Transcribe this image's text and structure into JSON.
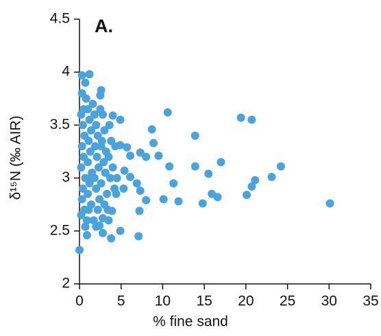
{
  "chart_data": {
    "type": "scatter",
    "title": "A.",
    "x_label": "% fine sand",
    "y_label": "δ¹⁵N (‰ AIR)",
    "xlim": [
      0,
      35
    ],
    "xticks": [
      0,
      5,
      10,
      15,
      20,
      25,
      30,
      35
    ],
    "ylim": [
      2,
      4.5
    ],
    "yticks": [
      2,
      2.5,
      3,
      3.5,
      4,
      4.5
    ],
    "grid": false,
    "series": [
      {
        "color": "#4ba3dc",
        "x": [
          10.6,
          19.4,
          20.7,
          13.9,
          8.7,
          8.9,
          17.0,
          13.9,
          24.2,
          10.8,
          9.5,
          15.5,
          21.1,
          23.1,
          20.7,
          11.3,
          30.1,
          20.1,
          15.9,
          16.6,
          14.8,
          11.9,
          10.1,
          8.0,
          7.2,
          7.1,
          7.3,
          6.9,
          4.9,
          3.8,
          0.9,
          0,
          0.3,
          1.2,
          0.7,
          2.6,
          2.5,
          0.3,
          4.9,
          4.0,
          4.9,
          5.7,
          7.3,
          8.0,
          6.1,
          5.4,
          6.1,
          5.3,
          4.4,
          3.9,
          2.8,
          2.0,
          2.8,
          0.7,
          0.2,
          0.4,
          0.6,
          0.3,
          0.5,
          0.2,
          0.7,
          0.4,
          0.3,
          0.6,
          0.2,
          1.0,
          1.2,
          1.4,
          1.1,
          1.3,
          1.0,
          1.5,
          1.2,
          1.0,
          1.4,
          1.1,
          1.8,
          2.0,
          2.2,
          1.9,
          2.1,
          2.3,
          1.8,
          2.0,
          2.4,
          2.2,
          2.8,
          3.0,
          2.7,
          3.2,
          2.9,
          3.1,
          2.6,
          3.3,
          3.0,
          3.6,
          3.8,
          3.5,
          4.0,
          3.7,
          4.2,
          3.5,
          0.8,
          1.6,
          2.5,
          4.3,
          4.5,
          0.9,
          1.7,
          2.4,
          0.5,
          1.3,
          2.6,
          3.4
        ],
        "values": [
          3.62,
          3.57,
          3.55,
          3.4,
          3.46,
          3.33,
          3.15,
          3.11,
          3.11,
          3.11,
          3.21,
          3.04,
          2.98,
          3.01,
          2.92,
          2.95,
          2.76,
          2.84,
          2.85,
          2.82,
          2.76,
          2.78,
          2.8,
          2.79,
          2.69,
          2.45,
          2.88,
          2.95,
          2.5,
          2.43,
          2.46,
          2.32,
          3.97,
          3.98,
          3.9,
          3.83,
          3.78,
          3.8,
          3.55,
          3.59,
          3.31,
          3.29,
          3.24,
          3.2,
          3.21,
          3.07,
          3.01,
          2.9,
          2.85,
          2.69,
          2.62,
          2.54,
          2.48,
          2.54,
          3.6,
          3.5,
          3.4,
          3.3,
          3.2,
          3.1,
          3.0,
          2.9,
          2.8,
          2.7,
          2.65,
          3.65,
          3.55,
          3.45,
          3.35,
          3.25,
          3.15,
          3.05,
          2.95,
          2.85,
          2.75,
          2.7,
          3.6,
          3.5,
          3.4,
          3.3,
          3.2,
          3.1,
          3.0,
          2.9,
          2.8,
          2.7,
          3.6,
          3.45,
          3.35,
          3.25,
          3.15,
          3.05,
          2.95,
          2.85,
          2.75,
          3.5,
          3.35,
          3.2,
          3.1,
          3.0,
          2.9,
          2.6,
          3.75,
          3.7,
          3.65,
          3.3,
          3.0,
          2.6,
          2.6,
          2.55,
          3.65,
          3.0,
          3.3,
          2.7
        ]
      }
    ]
  }
}
